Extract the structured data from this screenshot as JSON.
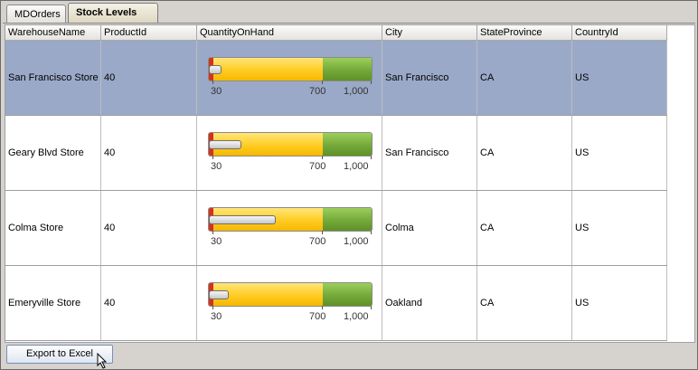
{
  "tabs": [
    {
      "label": "MDOrders",
      "active": false
    },
    {
      "label": "Stock Levels",
      "active": true
    }
  ],
  "table": {
    "columns": [
      "WarehouseName",
      "ProductId",
      "QuantityOnHand",
      "City",
      "StateProvince",
      "CountryId"
    ],
    "rows": [
      {
        "warehouse": "San Francisco Store",
        "product_id": "40",
        "quantity": 48,
        "city": "San Francisco",
        "state": "CA",
        "country": "US",
        "selected": true
      },
      {
        "warehouse": "Geary Blvd Store",
        "product_id": "40",
        "quantity": 200,
        "city": "San Francisco",
        "state": "CA",
        "country": "US",
        "selected": false
      },
      {
        "warehouse": "Colma Store",
        "product_id": "40",
        "quantity": 410,
        "city": "Colma",
        "state": "CA",
        "country": "US",
        "selected": false
      },
      {
        "warehouse": "Emeryville Store",
        "product_id": "40",
        "quantity": 120,
        "city": "Oakland",
        "state": "CA",
        "country": "US",
        "selected": false
      }
    ]
  },
  "gauge": {
    "min": 0,
    "max": 1000,
    "thresholds": [
      30,
      700
    ],
    "tick_labels": [
      "30",
      "700",
      "1,000"
    ],
    "colors": {
      "low": "#d3321e",
      "mid": "#ffcc22",
      "high": "#74a93a",
      "selection": "#9aa9c8"
    }
  },
  "footer": {
    "export_label": "Export to Excel"
  }
}
